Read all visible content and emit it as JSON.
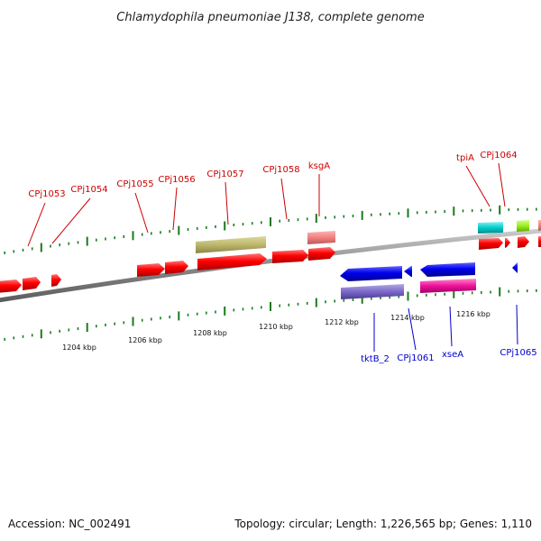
{
  "title": "Chlamydophila pneumoniae J138, complete genome",
  "footer": {
    "accession": "Accession: NC_002491",
    "summary": "Topology: circular; Length: 1,226,565 bp; Genes: 1,110"
  },
  "colors": {
    "forward_gene": "#ff0000",
    "reverse_gene": "#0000ee",
    "backbone": "#808080",
    "tick": "#1a7a1a",
    "label_red": "#cc0000",
    "label_blue": "#0000cc"
  },
  "scale_labels": [
    "1204 kbp",
    "1206 kbp",
    "1208 kbp",
    "1210 kbp",
    "1212 kbp",
    "1214 kbp",
    "1216 kbp"
  ],
  "top_labels": [
    "CPj1053",
    "CPj1054",
    "CPj1055",
    "CPj1056",
    "CPj1057",
    "CPj1058",
    "ksgA",
    "tpiA",
    "CPj1064"
  ],
  "bottom_labels": [
    "tktB_2",
    "CPj1061",
    "xseA",
    "CPj1065"
  ]
}
